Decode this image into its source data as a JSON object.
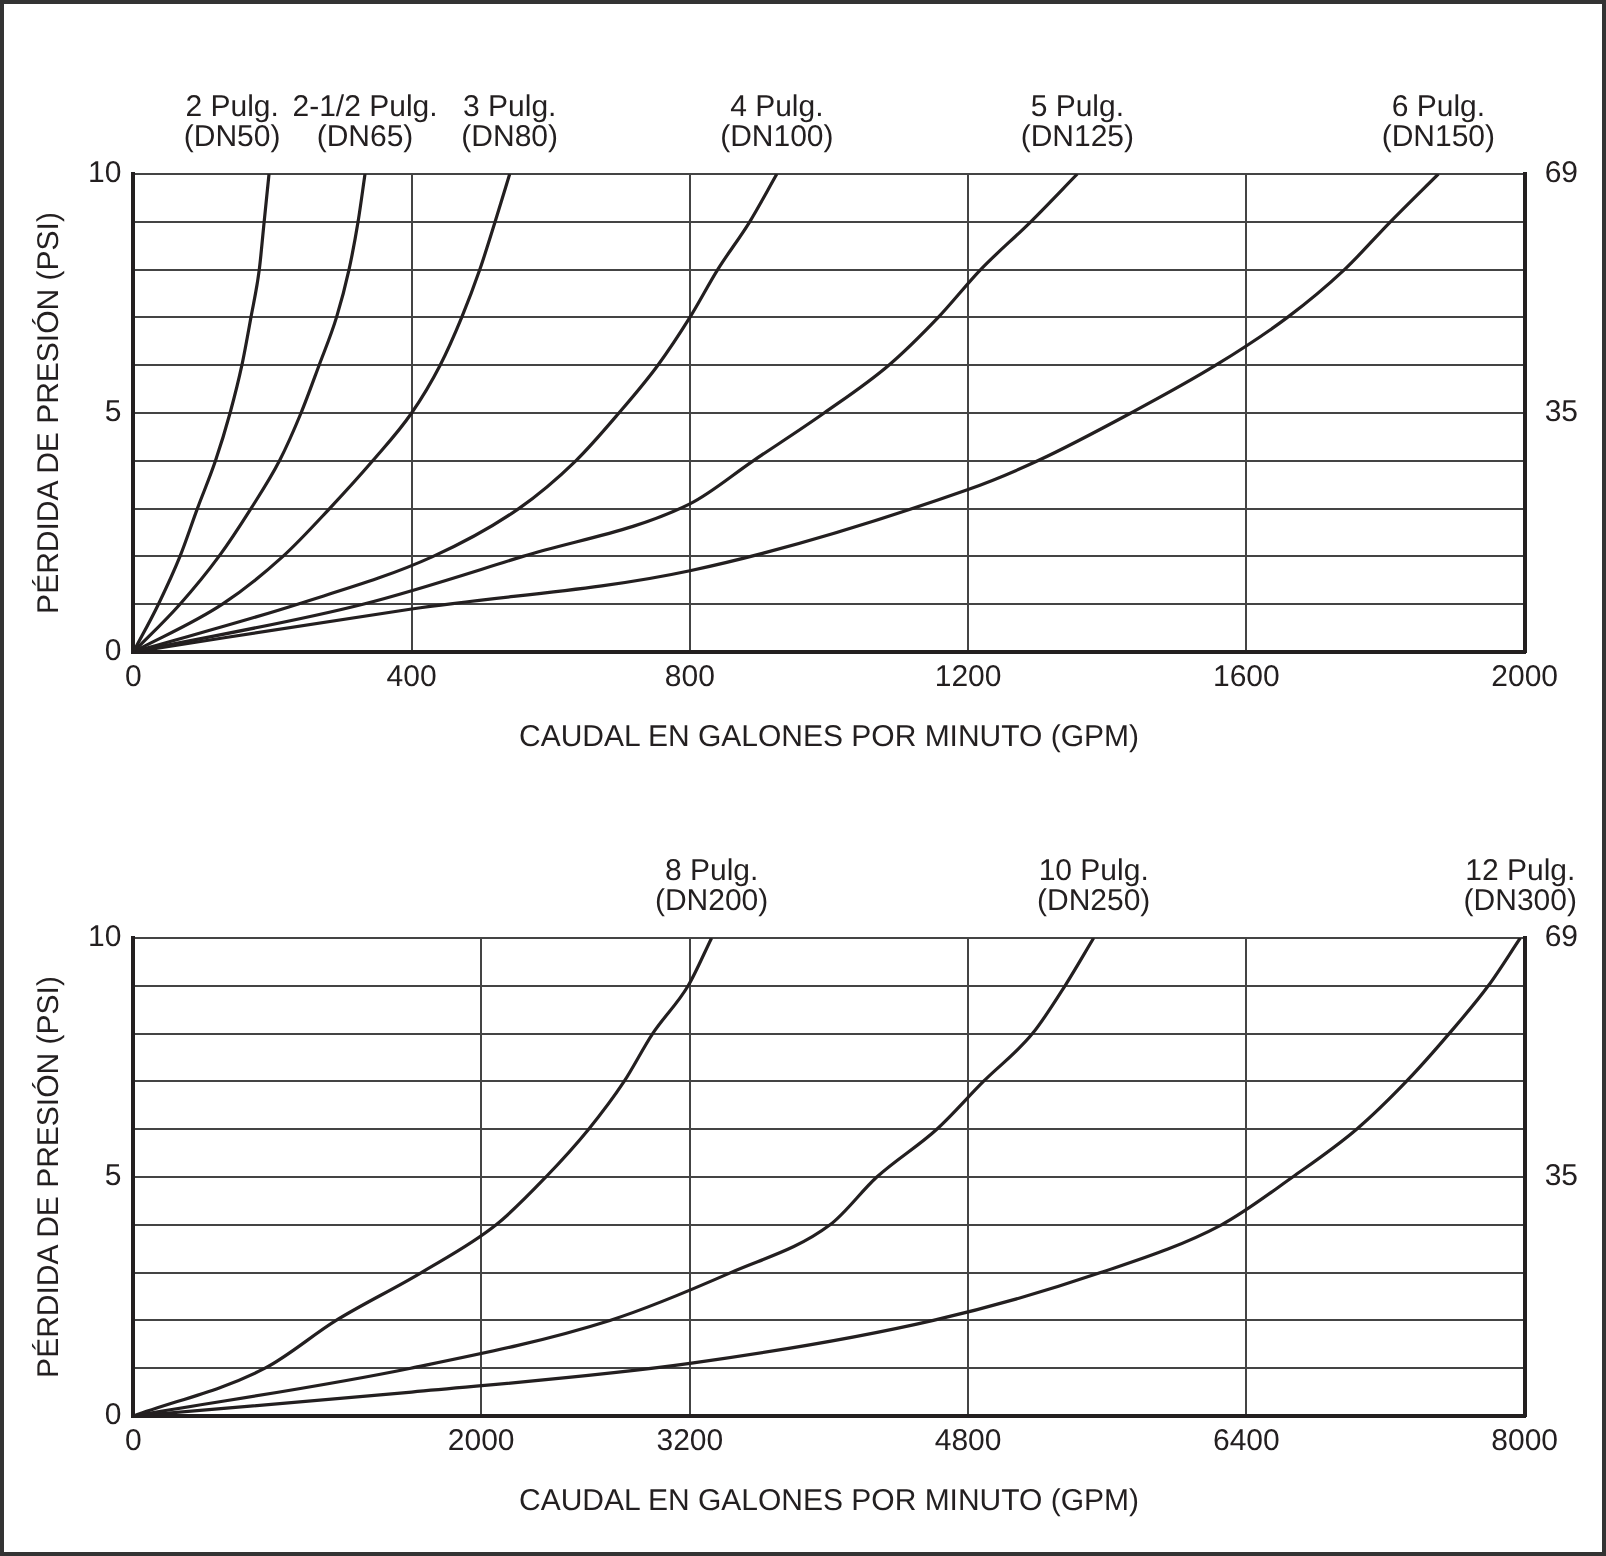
{
  "chart_data": [
    {
      "type": "line",
      "xlabel": "CAUDAL EN GALONES POR MINUTO (GPM)",
      "ylabel": "PÉRDIDA DE PRESIÓN (PSI)",
      "xlim": [
        0,
        2000
      ],
      "xticks": [
        0,
        400,
        800,
        1200,
        1600,
        2000
      ],
      "ylim": [
        0,
        10
      ],
      "yticks": [
        0,
        {
          "value": 1,
          "label": null
        },
        {
          "value": 2,
          "label": null
        },
        {
          "value": 3,
          "label": null
        },
        {
          "value": 4,
          "label": null
        },
        5,
        {
          "value": 6,
          "label": null
        },
        {
          "value": 7,
          "label": null
        },
        {
          "value": 8,
          "label": null
        },
        {
          "value": 9,
          "label": null
        },
        10
      ],
      "y2lim": [
        0,
        69
      ],
      "y2ticks": [
        {
          "value": 34.5,
          "label": "35"
        },
        69
      ],
      "grid": true,
      "marker": "none",
      "line_style": "solid",
      "series": [
        {
          "name": "2 Pulg.\n(DN50)",
          "color": "#231f20",
          "x": [
            0,
            36,
            67,
            92,
            118,
            139,
            156,
            169,
            181,
            188,
            195
          ],
          "values": [
            0,
            1,
            2,
            3,
            4,
            5,
            6,
            7,
            8,
            9,
            10
          ]
        },
        {
          "name": "2-1/2 Pulg.\n(DN65)",
          "color": "#231f20",
          "x": [
            0,
            67,
            123,
            169,
            210,
            241,
            267,
            292,
            310,
            323,
            333
          ],
          "values": [
            0,
            1,
            2,
            3,
            4,
            5,
            6,
            7,
            8,
            9,
            10
          ]
        },
        {
          "name": "3 Pulg.\n(DN80)",
          "color": "#231f20",
          "x": [
            0,
            128,
            215,
            282,
            344,
            400,
            441,
            472,
            498,
            520,
            541
          ],
          "values": [
            0,
            1,
            2,
            3,
            4,
            5,
            6,
            7,
            8,
            9,
            10
          ]
        },
        {
          "name": "4 Pulg.\n(DN100)",
          "color": "#231f20",
          "x": [
            0,
            236,
            431,
            554,
            636,
            698,
            754,
            800,
            840,
            886,
            925
          ],
          "values": [
            0,
            1,
            2,
            3,
            4,
            5,
            6,
            7,
            8,
            9,
            10
          ]
        },
        {
          "name": "5 Pulg.\n(DN125)",
          "color": "#231f20",
          "x": [
            0,
            330,
            560,
            800,
            891,
            993,
            1086,
            1157,
            1218,
            1290,
            1357
          ],
          "values": [
            0,
            1,
            2,
            3.1,
            4,
            5,
            6,
            7,
            8,
            9,
            10
          ]
        },
        {
          "name": "6 Pulg.\n(DN150)",
          "color": "#231f20",
          "x": [
            0,
            400,
            800,
            1200,
            1300,
            1434,
            1556,
            1659,
            1741,
            1807,
            1876
          ],
          "values": [
            0,
            0.9,
            1.7,
            3.4,
            4,
            5,
            6,
            7,
            8,
            9,
            10
          ]
        }
      ]
    },
    {
      "type": "line",
      "xlabel": "CAUDAL EN GALONES POR MINUTO (GPM)",
      "ylabel": "PÉRDIDA DE PRESIÓN (PSI)",
      "xlim": [
        0,
        8000
      ],
      "xticks": [
        0,
        2000,
        3200,
        4800,
        6400,
        8000
      ],
      "ylim": [
        0,
        10
      ],
      "yticks": [
        0,
        {
          "value": 1,
          "label": null
        },
        {
          "value": 2,
          "label": null
        },
        {
          "value": 3,
          "label": null
        },
        {
          "value": 4,
          "label": null
        },
        5,
        {
          "value": 6,
          "label": null
        },
        {
          "value": 7,
          "label": null
        },
        {
          "value": 8,
          "label": null
        },
        {
          "value": 9,
          "label": null
        },
        10
      ],
      "y2lim": [
        0,
        69
      ],
      "y2ticks": [
        {
          "value": 34.5,
          "label": "35"
        },
        69
      ],
      "grid": true,
      "marker": "none",
      "line_style": "solid",
      "series": [
        {
          "name": "8 Pulg.\n(DN200)",
          "color": "#231f20",
          "x": [
            0,
            757,
            1166,
            1656,
            2086,
            2372,
            2618,
            2822,
            2986,
            3190,
            3325
          ],
          "values": [
            0,
            1,
            2,
            3,
            4,
            5,
            6,
            7,
            8,
            9,
            10
          ]
        },
        {
          "name": "10 Pulg.\n(DN250)",
          "color": "#231f20",
          "x": [
            0,
            1595,
            2740,
            3435,
            4006,
            4275,
            4620,
            4888,
            5170,
            5357,
            5522
          ],
          "values": [
            0,
            1,
            2,
            3,
            4,
            5,
            6,
            7,
            8,
            9,
            10
          ]
        },
        {
          "name": "12 Pulg.\n(DN300)",
          "color": "#231f20",
          "x": [
            0,
            1600,
            3200,
            4600,
            5562,
            6257,
            6666,
            7034,
            7320,
            7566,
            7791,
            7975
          ],
          "values": [
            0,
            0.5,
            1.1,
            2,
            3,
            4,
            5,
            6,
            7,
            8,
            9,
            10
          ]
        }
      ]
    }
  ]
}
